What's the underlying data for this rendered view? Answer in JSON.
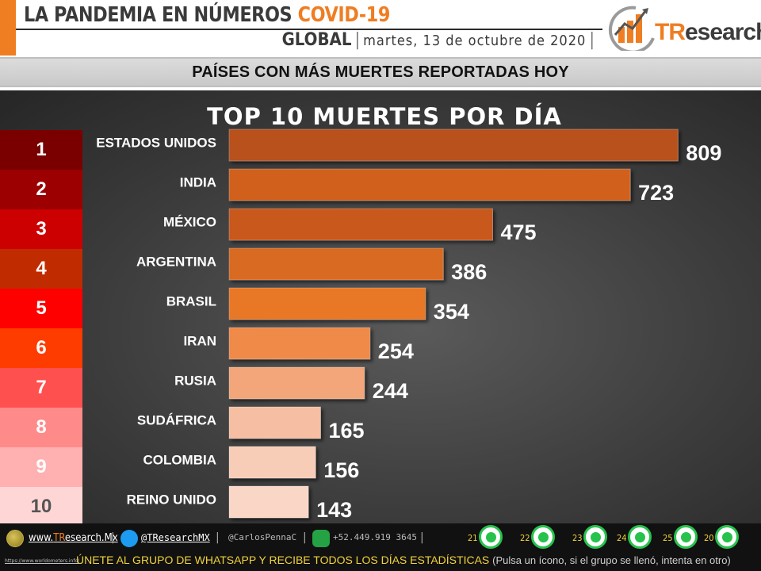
{
  "header": {
    "title_main": "LA PANDEMIA EN NÚMEROS ",
    "title_highlight": "COVID-19",
    "scope": "GLOBAL",
    "separator": "|",
    "date": "martes, 13 de octubre de 2020",
    "date_trailing_separator": "|",
    "logo_prefix": "TR",
    "logo_suffix": "esearch"
  },
  "section_title": "PAÍSES CON MÁS MUERTES REPORTADAS HOY",
  "chart_data": {
    "type": "bar",
    "orientation": "horizontal",
    "title": "TOP 10 MUERTES POR DÍA",
    "ranks": [
      "1",
      "2",
      "3",
      "4",
      "5",
      "6",
      "7",
      "8",
      "9",
      "10"
    ],
    "categories": [
      "ESTADOS UNIDOS",
      "INDIA",
      "MÉXICO",
      "ARGENTINA",
      "BRASIL",
      "IRAN",
      "RUSIA",
      "SUDÁFRICA",
      "COLOMBIA",
      "REINO UNIDO"
    ],
    "values": [
      809,
      723,
      475,
      386,
      354,
      254,
      244,
      165,
      156,
      143
    ],
    "xlim": [
      0,
      900
    ],
    "grid": false,
    "legend": "none",
    "rank_colors": [
      "#7a0000",
      "#9c0000",
      "#cc0000",
      "#c02b00",
      "#ff0000",
      "#ff3c00",
      "#ff5050",
      "#ff8a8a",
      "#ffb0b0",
      "#ffd6d6"
    ],
    "rank_text_colors": [
      "#ffffff",
      "#ffffff",
      "#ffffff",
      "#ffffff",
      "#ffffff",
      "#ffffff",
      "#ffffff",
      "#ffffff",
      "#ffffff",
      "#555555"
    ],
    "bar_colors": [
      "#b8511a",
      "#d0601e",
      "#c8581a",
      "#d86a22",
      "#e87726",
      "#ef8a4a",
      "#f3a67a",
      "#f6bea2",
      "#f8cdb8",
      "#f9d6c6"
    ]
  },
  "footer": {
    "website_prefix": "www.",
    "website_brand": "TR",
    "website_suffix": "esearch.Mx",
    "twitter": "@TResearchMX",
    "carlos": "@CarlosPennaC",
    "phone": "+52.449.919 3645",
    "separator": "|",
    "whatsapp_groups": [
      "21",
      "22",
      "23",
      "24",
      "25",
      "20"
    ],
    "small_link": "https://www.worldometers.info/",
    "cta_main": "ÚNETE AL GRUPO DE WHATSAPP Y RECIBE TODOS LOS DÍAS ESTADÍSTICAS",
    "cta_note": "(Pulsa un ícono, si el grupo se llenó, intenta en otro)"
  }
}
